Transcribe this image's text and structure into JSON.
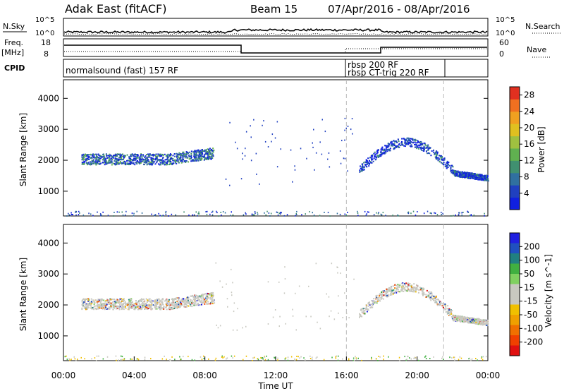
{
  "header": {
    "title": "Adak East (fitACF)",
    "beam": "Beam 15",
    "date_range": "07/Apr/2016 - 08/Apr/2016"
  },
  "summary_panels": {
    "nsky": {
      "label": "N.Sky",
      "left_ticks": [
        "10^5",
        "10^0"
      ],
      "right_label": "N.Search",
      "right_ticks": [
        "10^5",
        "10^0"
      ]
    },
    "freq": {
      "label_line1": "Freq.",
      "label_line2": "[MHz]",
      "left_ticks": [
        "18",
        "8"
      ],
      "right_label": "Nave",
      "right_ticks": [
        "60",
        "0"
      ]
    },
    "cpid": {
      "label": "CPID",
      "programs": [
        {
          "text": "normalsound (fast) 157 RF",
          "start_hour": 0
        },
        {
          "text": "rbsp 200 RF",
          "start_hour": 16
        },
        {
          "text": "rbsp CT-trig 220 RF",
          "start_hour": 16
        }
      ]
    }
  },
  "chart_data": [
    {
      "type": "scatter",
      "name": "power",
      "ylabel": "Slant Range [km]",
      "ylim": [
        200,
        4600
      ],
      "yticks": [
        1000,
        2000,
        3000,
        4000
      ],
      "colorbar": {
        "label": "Power [dB]",
        "ticks": [
          "4",
          "8",
          "12",
          "16",
          "20",
          "24",
          "28"
        ]
      },
      "regions": [
        {
          "x": [
            1.0,
            8.5
          ],
          "y": [
            1750,
            2400
          ],
          "note_color": "mixed"
        },
        {
          "x": [
            16.7,
            22.0
          ],
          "y": [
            1500,
            2900
          ]
        },
        {
          "x": [
            22.0,
            24.0
          ],
          "y": [
            1400,
            1700
          ]
        }
      ]
    },
    {
      "type": "scatter",
      "name": "velocity",
      "ylabel": "Slant Range [km]",
      "ylim": [
        200,
        4600
      ],
      "yticks": [
        1000,
        2000,
        3000,
        4000
      ],
      "colorbar": {
        "label": "Velocity [m s^-1]",
        "ticks": [
          "200",
          "100",
          "50",
          "15",
          "-15",
          "-50",
          "-100",
          "-200"
        ]
      },
      "regions": [
        {
          "x": [
            1.0,
            8.5
          ],
          "y": [
            1750,
            2400
          ]
        },
        {
          "x": [
            16.7,
            22.0
          ],
          "y": [
            1500,
            2900
          ]
        },
        {
          "x": [
            22.0,
            24.0
          ],
          "y": [
            1400,
            1700
          ]
        }
      ]
    }
  ],
  "x_axis": {
    "label": "Time UT",
    "ticks": [
      "00:00",
      "04:00",
      "08:00",
      "12:00",
      "16:00",
      "20:00",
      "00:00"
    ],
    "range_hours": [
      0,
      24
    ],
    "dashed_markers_hours": [
      16,
      21.5
    ]
  }
}
